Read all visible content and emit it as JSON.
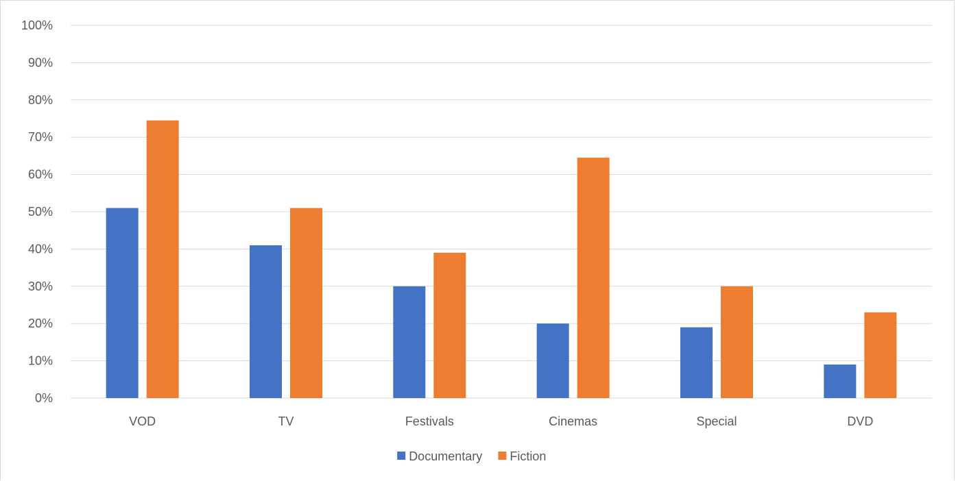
{
  "chart_data": {
    "type": "bar",
    "title": "",
    "xlabel": "",
    "ylabel": "",
    "categories": [
      "VOD",
      "TV",
      "Festivals",
      "Cinemas",
      "Special",
      "DVD"
    ],
    "series": [
      {
        "name": "Documentary",
        "color": "#4472c4",
        "values": [
          51,
          41,
          30,
          20,
          19,
          9
        ]
      },
      {
        "name": "Fiction",
        "color": "#ed7d31",
        "values": [
          74.5,
          51,
          39,
          64.5,
          30,
          23
        ]
      }
    ],
    "ylim": [
      0,
      100
    ],
    "ytick_values": [
      0,
      10,
      20,
      30,
      40,
      50,
      60,
      70,
      80,
      90,
      100
    ],
    "ytick_labels": [
      "0%",
      "10%",
      "20%",
      "30%",
      "40%",
      "50%",
      "60%",
      "70%",
      "80%",
      "90%",
      "100%"
    ],
    "grid": true,
    "legend_position": "bottom",
    "colors": {
      "grid": "#d9d9d9",
      "axis": "#d9d9d9",
      "text": "#595959"
    }
  }
}
